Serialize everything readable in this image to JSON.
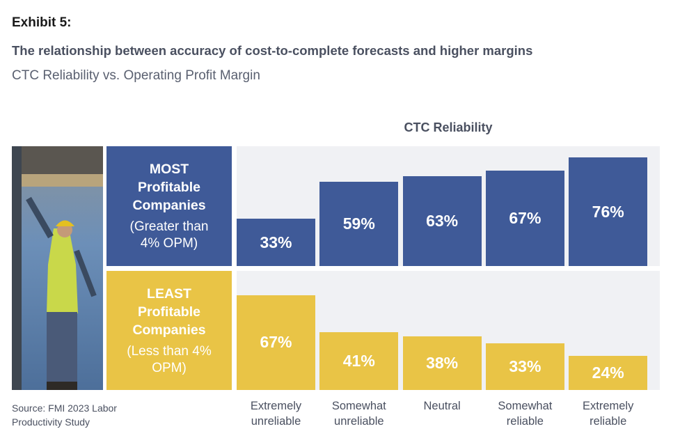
{
  "chart_data": {
    "type": "bar",
    "label": "Exhibit 5:",
    "title": "The relationship between accuracy of cost-to-complete forecasts and higher margins",
    "subtitle": "CTC Reliability vs. Operating Profit Margin",
    "x_axis_title": "CTC Reliability",
    "categories": [
      "Extremely unreliable",
      "Somewhat unreliable",
      "Neutral",
      "Somewhat reliable",
      "Extremely reliable"
    ],
    "ylim": [
      0,
      84
    ],
    "series": [
      {
        "name": "MOST Profitable Companies",
        "note": "(Greater than 4% OPM)",
        "color": "#3f5a98",
        "text_color": "#ffffff",
        "values": [
          33,
          59,
          63,
          67,
          76
        ],
        "value_labels": [
          "33%",
          "59%",
          "63%",
          "67%",
          "76%"
        ]
      },
      {
        "name": "LEAST Profitable Companies",
        "note": "(Less than 4% OPM)",
        "color": "#e9c446",
        "text_color": "#ffffff",
        "values": [
          67,
          41,
          38,
          33,
          24
        ],
        "value_labels": [
          "67%",
          "41%",
          "38%",
          "33%",
          "24%"
        ]
      }
    ],
    "source": "Source: FMI 2023 Labor Productivity Study"
  }
}
